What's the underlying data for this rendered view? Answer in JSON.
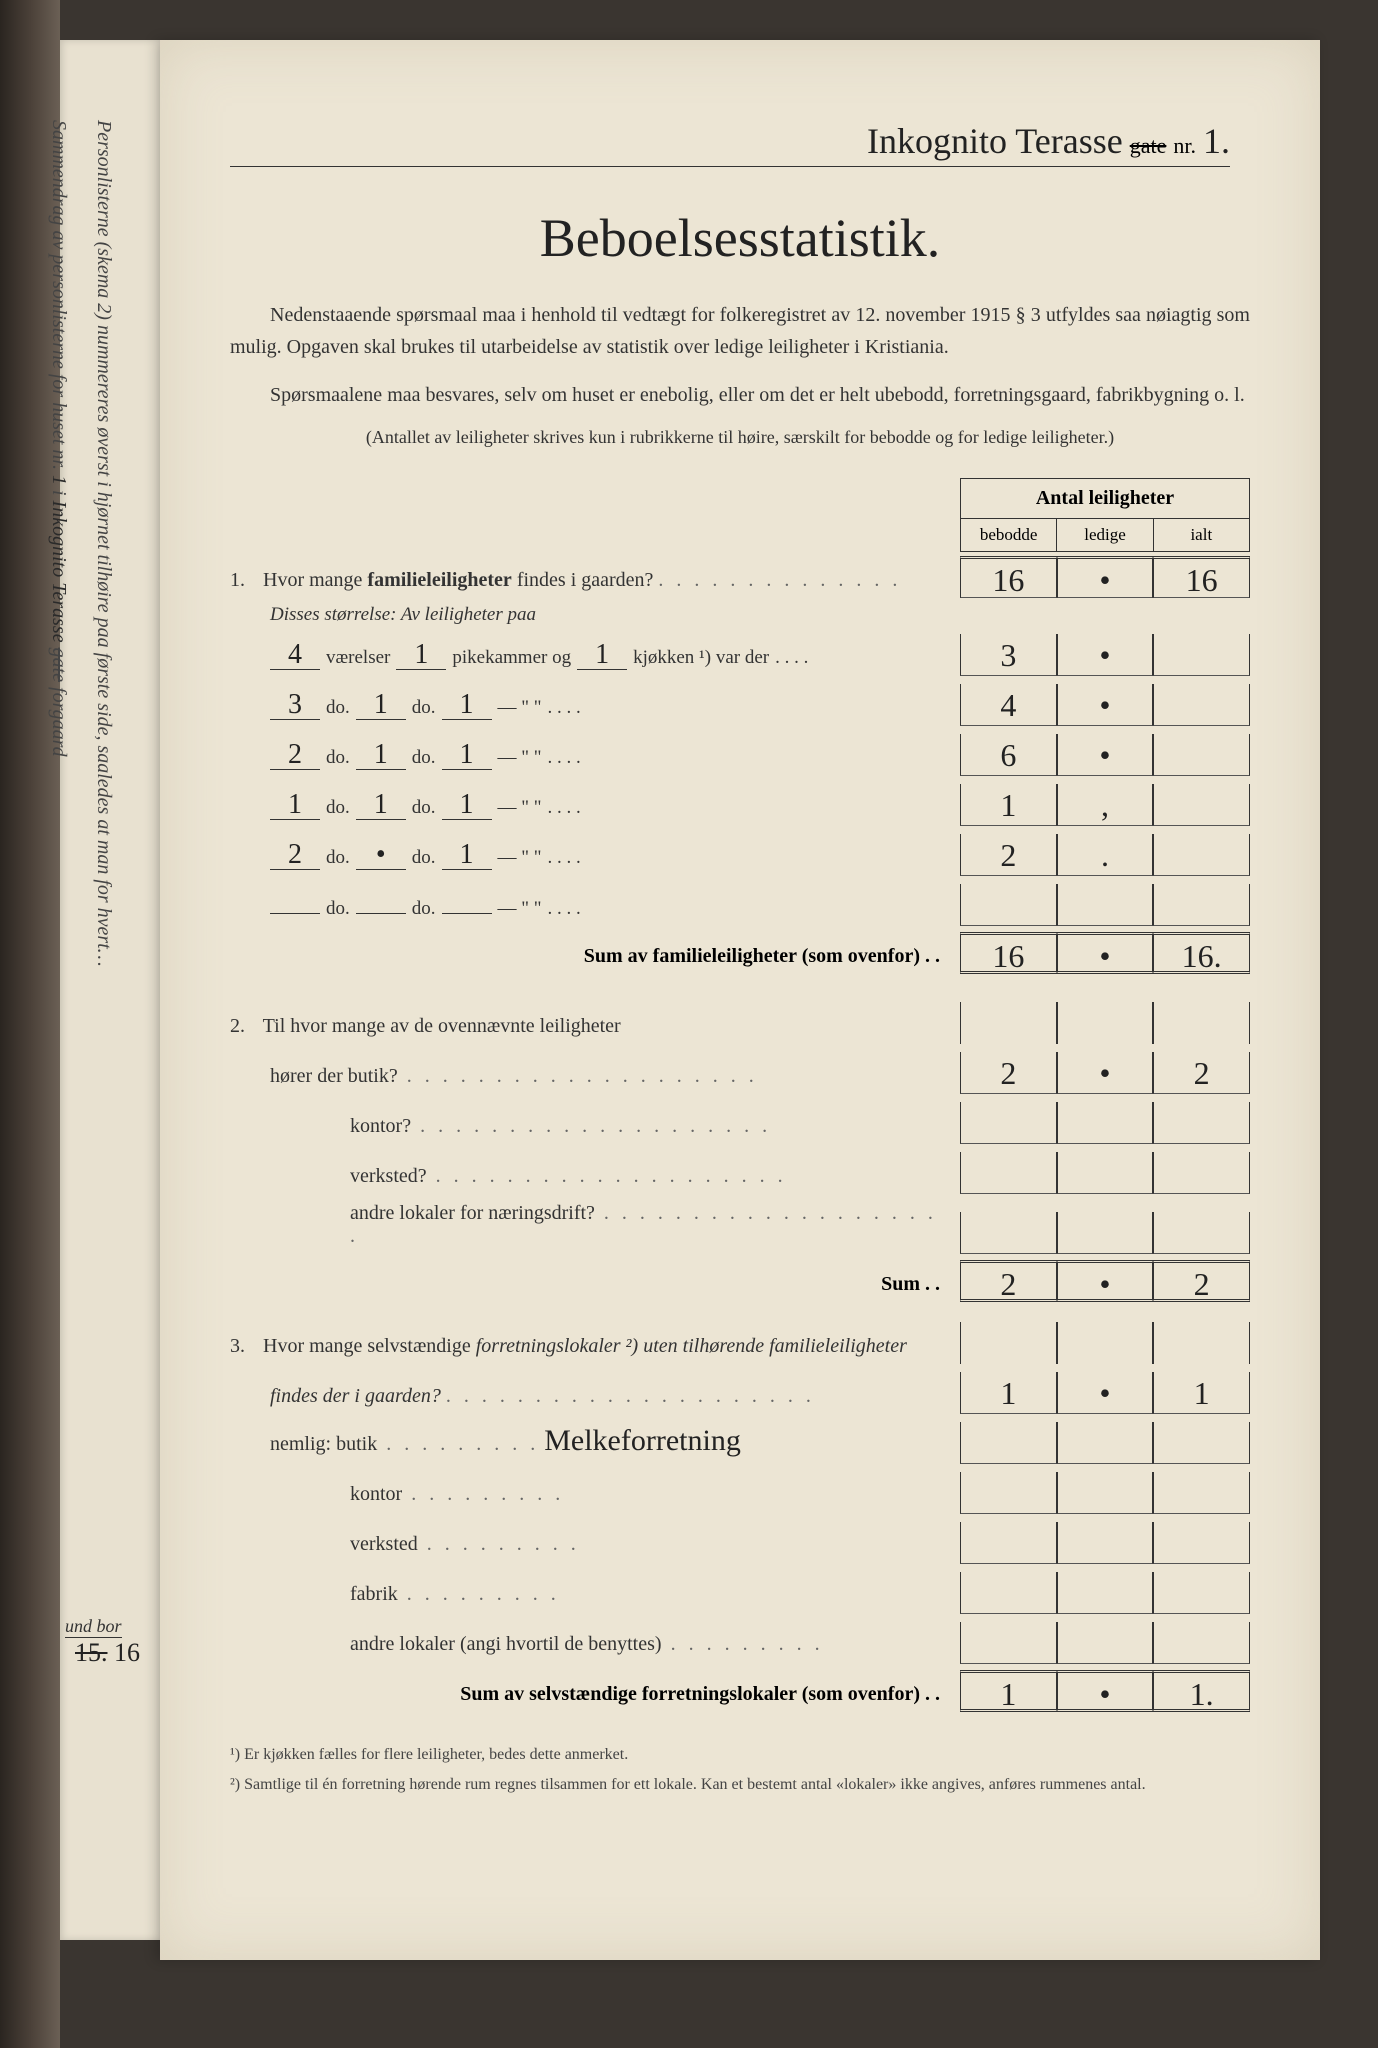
{
  "colors": {
    "paper": "#ece5d4",
    "ink": "#222",
    "text": "#333",
    "border": "#333",
    "background": "#3a3530"
  },
  "margin": {
    "line1_prefix": "Sammendrag av personlisterne for huset nr.",
    "line1_nr": "1",
    "line1_mid": " i ",
    "line1_street": "Inkognito Terasse",
    "line1_gate_struck": "gate",
    "line1_suffix": " forgaard",
    "line2": "Personlisterne (skema 2) nummereres øverst i hjørnet tilhøire paa første side, saaledes at man for hvert…",
    "und_bor": "und bor",
    "und_num_strike": "15.",
    "und_num": "16"
  },
  "address": {
    "street": "Inkognito Terasse",
    "gate_struck": "gate",
    "nr_label": "nr.",
    "nr": "1."
  },
  "title": "Beboelsesstatistik.",
  "intro1": "Nedenstaaende spørsmaal maa i henhold til vedtægt for folkeregistret av 12. november 1915 § 3 utfyldes saa nøiagtig som mulig. Opgaven skal brukes til utarbeidelse av statistik over ledige leiligheter i Kristiania.",
  "intro2": "Spørsmaalene maa besvares, selv om huset er enebolig, eller om det er helt ubebodd, forretningsgaard, fabrikbygning o. l.",
  "intro3": "(Antallet av leiligheter skrives kun i rubrikkerne til høire, særskilt for bebodde og for ledige leiligheter.)",
  "table_header": {
    "main": "Antal leiligheter",
    "col1": "bebodde",
    "col2": "ledige",
    "col3": "ialt"
  },
  "q1": {
    "num": "1.",
    "text_a": "Hvor mange ",
    "text_b": "familieleiligheter",
    "text_c": " findes i gaarden?",
    "bebodde": "16",
    "ledige": "•",
    "ialt": "16",
    "sizes_label": "Disses størrelse:",
    "sizes_intro": " Av leiligheter paa",
    "rows": [
      {
        "v": "4",
        "p": "1",
        "k": "1",
        "w1": "værelser",
        "w2": "pikekammer og",
        "w3": "kjøkken ¹) var der",
        "beb": "3",
        "led": "•",
        "ialt": ""
      },
      {
        "v": "3",
        "p": "1",
        "k": "1",
        "w1": "do.",
        "w2": "do.",
        "w3": "—        \"        \"",
        "beb": "4",
        "led": "•",
        "ialt": ""
      },
      {
        "v": "2",
        "p": "1",
        "k": "1",
        "w1": "do.",
        "w2": "do.",
        "w3": "—        \"        \"",
        "beb": "6",
        "led": "•",
        "ialt": ""
      },
      {
        "v": "1",
        "p": "1",
        "k": "1",
        "w1": "do.",
        "w2": "do.",
        "w3": "—        \"        \"",
        "beb": "1",
        "led": ",",
        "ialt": ""
      },
      {
        "v": "2",
        "p": "•",
        "k": "1",
        "w1": "do.",
        "w2": "do.",
        "w3": "—        \"        \"",
        "beb": "2",
        "led": ".",
        "ialt": ""
      },
      {
        "v": "",
        "p": "",
        "k": "",
        "w1": "do.",
        "w2": "do.",
        "w3": "—        \"        \"",
        "beb": "",
        "led": "",
        "ialt": ""
      }
    ],
    "sum_label": "Sum av familieleiligheter (som ovenfor) . .",
    "sum": {
      "beb": "16",
      "led": "•",
      "ialt": "16."
    }
  },
  "q2": {
    "num": "2.",
    "text": "Til hvor mange av de ovennævnte leiligheter",
    "rows": [
      {
        "label": "hører der butik?",
        "beb": "2",
        "led": "•",
        "ialt": "2"
      },
      {
        "label": "kontor?",
        "beb": "",
        "led": "",
        "ialt": ""
      },
      {
        "label": "verksted?",
        "beb": "",
        "led": "",
        "ialt": ""
      },
      {
        "label": "andre lokaler for næringsdrift?",
        "beb": "",
        "led": "",
        "ialt": ""
      }
    ],
    "sum_label": "Sum . .",
    "sum": {
      "beb": "2",
      "led": "•",
      "ialt": "2"
    }
  },
  "q3": {
    "num": "3.",
    "text_a": "Hvor mange selvstændige ",
    "text_b": "forretningslokaler ²)",
    "text_c": " uten tilhørende familieleiligheter",
    "text_d": "findes der i gaarden?",
    "main": {
      "beb": "1",
      "led": "•",
      "ialt": "1"
    },
    "nemlig": "nemlig:",
    "rows": [
      {
        "label": "butik",
        "fill": "Melkeforretning",
        "beb": "",
        "led": "",
        "ialt": ""
      },
      {
        "label": "kontor",
        "fill": "",
        "beb": "",
        "led": "",
        "ialt": ""
      },
      {
        "label": "verksted",
        "fill": "",
        "beb": "",
        "led": "",
        "ialt": ""
      },
      {
        "label": "fabrik",
        "fill": "",
        "beb": "",
        "led": "",
        "ialt": ""
      },
      {
        "label": "andre lokaler (angi hvortil de benyttes)",
        "fill": "",
        "beb": "",
        "led": "",
        "ialt": ""
      }
    ],
    "sum_label": "Sum av selvstændige forretningslokaler (som ovenfor) . .",
    "sum": {
      "beb": "1",
      "led": "•",
      "ialt": "1."
    }
  },
  "footnotes": {
    "f1": "¹) Er kjøkken fælles for flere leiligheter, bedes dette anmerket.",
    "f2": "²) Samtlige til én forretning hørende rum regnes tilsammen for ett lokale. Kan et bestemt antal «lokaler» ikke angives, anføres rummenes antal."
  }
}
